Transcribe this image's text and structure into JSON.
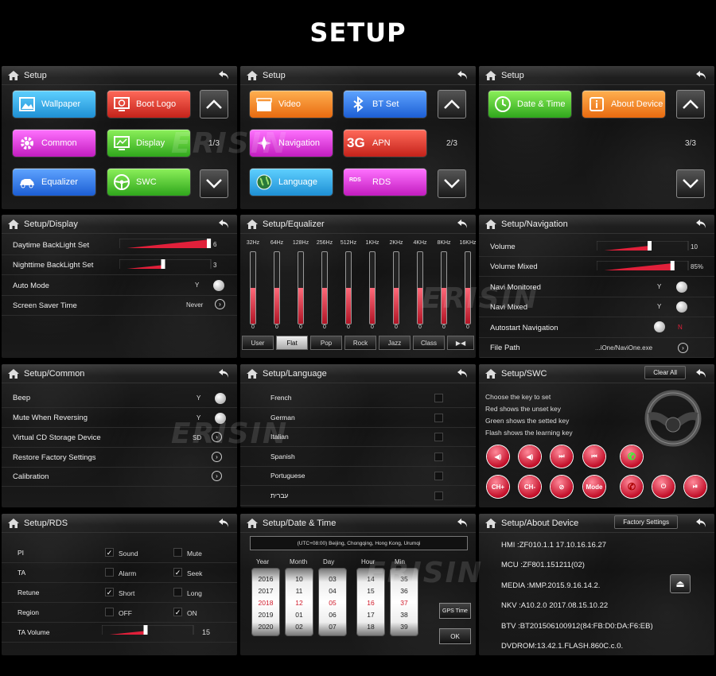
{
  "header": {
    "title": "SETUP"
  },
  "watermark": "ERISIN",
  "p1": {
    "title": "Setup",
    "page": "1/3",
    "tiles": [
      "Wallpaper",
      "Boot Logo",
      "Common",
      "Display",
      "Equalizer",
      "SWC"
    ]
  },
  "p2": {
    "title": "Setup",
    "page": "2/3",
    "tiles": [
      "Video",
      "BT Set",
      "Navigation",
      "APN",
      "Language",
      "RDS"
    ],
    "apn_icon": "3G",
    "rds_icon": "RDS"
  },
  "p3": {
    "title": "Setup",
    "page": "3/3",
    "tiles": [
      "Date & Time",
      "About Device"
    ]
  },
  "display": {
    "title": "Setup/Display",
    "rows": [
      "Daytime BackLight Set",
      "Nighttime BackLight Set",
      "Auto Mode",
      "Screen Saver Time"
    ],
    "day_val": "6",
    "night_val": "3",
    "auto_val": "Y",
    "saver_val": "Never",
    "day_level": 1.0,
    "night_level": 0.5
  },
  "eq": {
    "title": "Setup/Equalizer",
    "bands": [
      "32Hz",
      "64Hz",
      "128Hz",
      "256Hz",
      "512Hz",
      "1KHz",
      "2KHz",
      "4KHz",
      "8KHz",
      "16KHz"
    ],
    "values": [
      "0",
      "0",
      "0",
      "0",
      "0",
      "0",
      "0",
      "0",
      "0",
      "0"
    ],
    "presets": [
      "User",
      "Flat",
      "Pop",
      "Rock",
      "Jazz",
      "Class"
    ],
    "selected": "Flat"
  },
  "nav": {
    "title": "Setup/Navigation",
    "rows": [
      "Volume",
      "Volume Mixed",
      "Navi Monitored",
      "Navi Mixed",
      "Autostart Navigation",
      "File Path"
    ],
    "vol": "10",
    "volmix": "85%",
    "mon": "Y",
    "mixed": "Y",
    "auto": "N",
    "path": "...iOne/NaviOne.exe",
    "vol_level": 0.6,
    "volmix_level": 0.85
  },
  "common": {
    "title": "Setup/Common",
    "rows": [
      "Beep",
      "Mute When Reversing",
      "Virtual CD Storage Device",
      "Restore Factory Settings",
      "Calibration"
    ],
    "beep": "Y",
    "mute": "Y",
    "vcd": "SD"
  },
  "lang": {
    "title": "Setup/Language",
    "items": [
      "French",
      "German",
      "Italian",
      "Spanish",
      "Portuguese",
      "עברית"
    ]
  },
  "swc": {
    "title": "Setup/SWC",
    "clear": "Clear All",
    "lines": [
      "Choose the key to set",
      "Red shows the unset key",
      "Green shows the setted key",
      "Flash shows the learning key"
    ],
    "btn_ch_plus": "CH+",
    "btn_ch_minus": "CH-",
    "btn_mode": "Mode"
  },
  "rds": {
    "title": "Setup/RDS",
    "rows": [
      "PI",
      "TA",
      "Retune",
      "Region",
      "TA Volume"
    ],
    "opts": [
      [
        "Sound",
        "Mute"
      ],
      [
        "Alarm",
        "Seek"
      ],
      [
        "Short",
        "Long"
      ],
      [
        "OFF",
        "ON"
      ]
    ],
    "checked": [
      [
        true,
        false
      ],
      [
        false,
        true
      ],
      [
        true,
        false
      ],
      [
        false,
        true
      ]
    ],
    "ta_vol": "15",
    "ta_level": 0.5
  },
  "date": {
    "title": "Setup/Date & Time",
    "tz": "(UTC+08:00) Beijing, Chongqing, Hong Kong, Urumqi",
    "cols": [
      "Year",
      "Month",
      "Day",
      "Hour",
      "Min"
    ],
    "year": [
      "2016",
      "2017",
      "2018",
      "2019",
      "2020"
    ],
    "month": [
      "10",
      "11",
      "12",
      "01",
      "02"
    ],
    "day": [
      "03",
      "04",
      "05",
      "06",
      "07"
    ],
    "hour": [
      "14",
      "15",
      "16",
      "17",
      "18"
    ],
    "min": [
      "35",
      "36",
      "37",
      "38",
      "39"
    ],
    "gps": "GPS Time",
    "ok": "OK"
  },
  "about": {
    "title": "Setup/About Device",
    "factory": "Factory Settings",
    "lines": [
      "HMI  :ZF010.1.1   17.10.16.16.27",
      "MCU :ZF801.151211(02)",
      "MEDIA :MMP.2015.9.16.14.2.",
      "NKV :A10.2.0 2017.08.15.10.22",
      "BTV  :BT201506100912(84:FB:D0:DA:F6:EB)",
      "DVDROM:13.42.1.FLASH.860C.c.0."
    ]
  }
}
